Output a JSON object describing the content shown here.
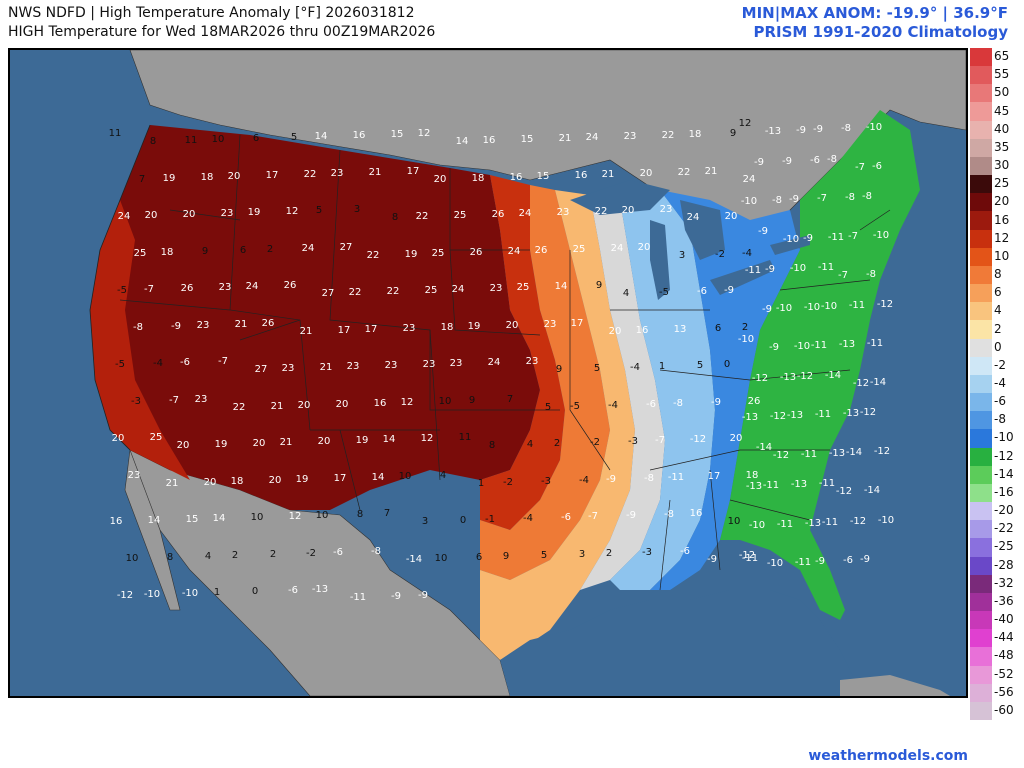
{
  "header": {
    "line1": "NWS NDFD | High Temperature Anomaly [°F] 2026031812",
    "line2": "HIGH Temperature for Wed 18MAR2026 thru 00Z19MAR2026",
    "stats": "MIN|MAX ANOM: -19.9° | 36.9°F",
    "climatology": "PRISM 1991-2020 Climatology"
  },
  "footer": {
    "credit": "weathermodels.com"
  },
  "colors": {
    "ocean": "#3d6a96",
    "land_outside": "#9a9a9a",
    "state_lines": "#222222"
  },
  "colorbar": [
    {
      "label": "65",
      "color": "#d9383a"
    },
    {
      "label": "55",
      "color": "#e15a5c"
    },
    {
      "label": "50",
      "color": "#e87878"
    },
    {
      "label": "45",
      "color": "#ee9a98"
    },
    {
      "label": "40",
      "color": "#e8b2ae"
    },
    {
      "label": "35",
      "color": "#cfa8a4"
    },
    {
      "label": "30",
      "color": "#b08b88"
    },
    {
      "label": "25",
      "color": "#3b0a0a"
    },
    {
      "label": "20",
      "color": "#6e0a0a"
    },
    {
      "label": "16",
      "color": "#9c1a0e"
    },
    {
      "label": "12",
      "color": "#c8300e"
    },
    {
      "label": "10",
      "color": "#e35418"
    },
    {
      "label": "8",
      "color": "#f07a38"
    },
    {
      "label": "6",
      "color": "#f6a05a"
    },
    {
      "label": "4",
      "color": "#f9c47e"
    },
    {
      "label": "2",
      "color": "#fbe4a6"
    },
    {
      "label": "0",
      "color": "#e0e0e0"
    },
    {
      "label": "-2",
      "color": "#cfe7f6"
    },
    {
      "label": "-4",
      "color": "#a6d2f0"
    },
    {
      "label": "-6",
      "color": "#7ab6ea"
    },
    {
      "label": "-8",
      "color": "#4f96e2"
    },
    {
      "label": "-10",
      "color": "#2a78dc"
    },
    {
      "label": "-12",
      "color": "#28b040"
    },
    {
      "label": "-14",
      "color": "#5ccc5a"
    },
    {
      "label": "-16",
      "color": "#8ee08a"
    },
    {
      "label": "-20",
      "color": "#c9c2f2"
    },
    {
      "label": "-22",
      "color": "#a79ae8"
    },
    {
      "label": "-25",
      "color": "#8a70de"
    },
    {
      "label": "-28",
      "color": "#6a48c8"
    },
    {
      "label": "-32",
      "color": "#7a2a7a"
    },
    {
      "label": "-36",
      "color": "#a0309a"
    },
    {
      "label": "-40",
      "color": "#c838b8"
    },
    {
      "label": "-44",
      "color": "#e040d0"
    },
    {
      "label": "-48",
      "color": "#e870d8"
    },
    {
      "label": "-52",
      "color": "#e898d8"
    },
    {
      "label": "-56",
      "color": "#ddb0d8"
    },
    {
      "label": "-60",
      "color": "#d6c2d6"
    }
  ],
  "map_values": [
    "11",
    "8",
    "11",
    "10",
    "6",
    "5",
    "14",
    "16",
    "15",
    "12",
    "14",
    "16",
    "15",
    "21",
    "24",
    "23",
    "22",
    "18",
    "9",
    "7",
    "19",
    "18",
    "20",
    "17",
    "22",
    "23",
    "21",
    "17",
    "20",
    "18",
    "16",
    "15",
    "16",
    "21",
    "20",
    "22",
    "21",
    "24",
    "24",
    "20",
    "20",
    "23",
    "19",
    "12",
    "5",
    "3",
    "8",
    "22",
    "25",
    "26",
    "24",
    "23",
    "22",
    "20",
    "23",
    "24",
    "20",
    "25",
    "18",
    "9",
    "6",
    "2",
    "24",
    "27",
    "22",
    "19",
    "25",
    "26",
    "24",
    "26",
    "25",
    "24",
    "20",
    "3",
    "-2",
    "-4",
    "-5",
    "-7",
    "26",
    "23",
    "24",
    "26",
    "27",
    "22",
    "22",
    "25",
    "24",
    "23",
    "25",
    "14",
    "9",
    "4",
    "-5",
    "-6",
    "-9",
    "-8",
    "-9",
    "23",
    "21",
    "26",
    "21",
    "17",
    "17",
    "23",
    "18",
    "19",
    "20",
    "23",
    "17",
    "20",
    "16",
    "13",
    "6",
    "2",
    "-5",
    "-4",
    "-6",
    "-7",
    "27",
    "23",
    "21",
    "23",
    "23",
    "23",
    "23",
    "24",
    "23",
    "9",
    "5",
    "-4",
    "1",
    "5",
    "0",
    "-3",
    "-7",
    "23",
    "22",
    "21",
    "20",
    "20",
    "16",
    "12",
    "10",
    "9",
    "7",
    "5",
    "-5",
    "-4",
    "-6",
    "-8",
    "-9",
    "26",
    "20",
    "25",
    "20",
    "19",
    "20",
    "21",
    "20",
    "19",
    "14",
    "12",
    "11",
    "8",
    "4",
    "2",
    "-2",
    "-3",
    "-7",
    "-12",
    "20",
    "23",
    "21",
    "20",
    "18",
    "20",
    "19",
    "17",
    "14",
    "10",
    "4",
    "1",
    "-2",
    "-3",
    "-4",
    "-9",
    "-8",
    "-11",
    "17",
    "18",
    "16",
    "14",
    "15",
    "14",
    "10",
    "12",
    "10",
    "8",
    "7",
    "3",
    "0",
    "-1",
    "-4",
    "-6",
    "-7",
    "-9",
    "-8",
    "16",
    "10",
    "10",
    "8",
    "4",
    "2",
    "2",
    "-2",
    "-6",
    "-8",
    "-14",
    "10",
    "6",
    "9",
    "5",
    "3",
    "2",
    "-3",
    "-6",
    "-9",
    "-11",
    "-12",
    "-10",
    "-10",
    "1",
    "0",
    "-6",
    "-13",
    "-11",
    "-9",
    "-9"
  ],
  "map_values_east": [
    "12",
    "-13",
    "-9",
    "-9",
    "-8",
    "-10",
    "-9",
    "-9",
    "-6",
    "-8",
    "-7",
    "-6",
    "-10",
    "-8",
    "-9",
    "-7",
    "-8",
    "-8",
    "-9",
    "-10",
    "-9",
    "-11",
    "-7",
    "-10",
    "-11",
    "-9",
    "-10",
    "-11",
    "-7",
    "-8",
    "-9",
    "-10",
    "-10",
    "-10",
    "-11",
    "-12",
    "-10",
    "-9",
    "-10",
    "-11",
    "-13",
    "-11",
    "-12",
    "-13",
    "-12",
    "-14",
    "-12",
    "-14",
    "-13",
    "-12",
    "-13",
    "-11",
    "-13",
    "-12",
    "-14",
    "-12",
    "-11",
    "-13",
    "-14",
    "-12",
    "-13",
    "-11",
    "-13",
    "-11",
    "-12",
    "-14",
    "-10",
    "-11",
    "-13",
    "-11",
    "-12",
    "-10",
    "-12",
    "-10",
    "-11",
    "-9",
    "-6",
    "-9"
  ]
}
